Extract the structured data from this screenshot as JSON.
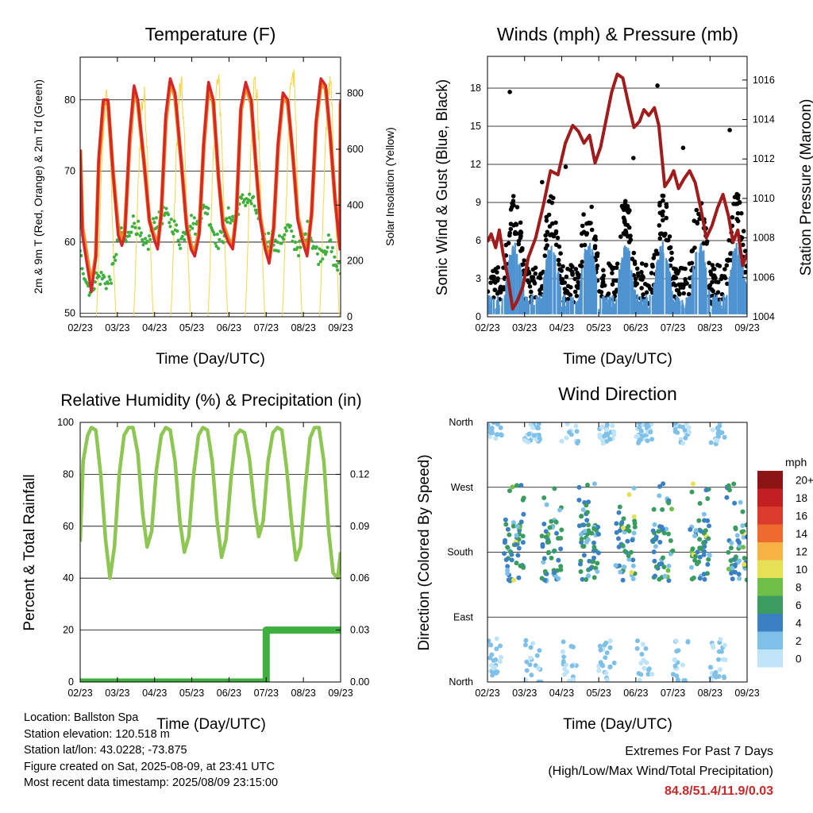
{
  "x_tick_labels": [
    "02/23",
    "03/23",
    "04/23",
    "05/23",
    "06/23",
    "07/23",
    "08/23",
    "09/23"
  ],
  "chart_data": [
    {
      "id": "temperature",
      "type": "line",
      "title": "Temperature (F)",
      "xlabel": "Time (Day/UTC)",
      "ylabel": "2m & 9m T (Red, Orange) & 2m Td (Green)",
      "ylabel_right": "Solar Insolation (Yellow)",
      "xlim": [
        0,
        7
      ],
      "ylim": [
        49.5,
        86
      ],
      "ylim_right": [
        0,
        930
      ],
      "yticks": [
        50,
        60,
        70,
        80
      ],
      "yticks_right": [
        0,
        200,
        400,
        600,
        800
      ],
      "series": [
        {
          "name": "2m T",
          "color": "#d62728",
          "x": [
            0.0,
            0.06,
            0.18,
            0.3,
            0.42,
            0.5,
            0.62,
            0.75,
            0.88,
            1.02,
            1.12,
            1.2,
            1.33,
            1.45,
            1.55,
            1.72,
            1.86,
            1.98,
            2.08,
            2.18,
            2.3,
            2.42,
            2.55,
            2.72,
            2.86,
            2.98,
            3.08,
            3.2,
            3.32,
            3.45,
            3.58,
            3.72,
            3.84,
            3.98,
            4.1,
            4.2,
            4.32,
            4.45,
            4.6,
            4.72,
            4.84,
            4.97,
            5.08,
            5.2,
            5.32,
            5.45,
            5.58,
            5.72,
            5.85,
            5.98,
            6.1,
            6.22,
            6.34,
            6.47,
            6.6,
            6.72,
            6.85,
            6.98,
            7.0
          ],
          "y": [
            73,
            61,
            57,
            53,
            58,
            72,
            80,
            80,
            70,
            61,
            59.5,
            61,
            75,
            82,
            80,
            71,
            63,
            60.5,
            59,
            64,
            78,
            83,
            81,
            71,
            62,
            59,
            58,
            61,
            74,
            82.5,
            80,
            69,
            62,
            60,
            59,
            64,
            79,
            82.5,
            80,
            71,
            63,
            59,
            57,
            62,
            74,
            81,
            80,
            72,
            63,
            60,
            58,
            64,
            77,
            83,
            82,
            75,
            66,
            59,
            80
          ]
        },
        {
          "name": "9m T",
          "color": "#f08a24",
          "x": [
            0.0,
            0.06,
            0.18,
            0.3,
            0.42,
            0.5,
            0.62,
            0.75,
            0.88,
            1.02,
            1.12,
            1.2,
            1.33,
            1.45,
            1.55,
            1.72,
            1.86,
            1.98,
            2.08,
            2.18,
            2.3,
            2.42,
            2.55,
            2.72,
            2.86,
            2.98,
            3.08,
            3.2,
            3.32,
            3.45,
            3.58,
            3.72,
            3.84,
            3.98,
            4.1,
            4.2,
            4.32,
            4.45,
            4.6,
            4.72,
            4.84,
            4.97,
            5.08,
            5.2,
            5.32,
            5.45,
            5.58,
            5.72,
            5.85,
            5.98,
            6.1,
            6.22,
            6.34,
            6.47,
            6.6,
            6.72,
            6.85,
            6.98,
            7.0
          ],
          "y": [
            73,
            62,
            58,
            54,
            58,
            71,
            79.5,
            79.5,
            70,
            62,
            60,
            61.5,
            74,
            81.5,
            79.5,
            71,
            63,
            61,
            59.5,
            64,
            77,
            82.5,
            80.5,
            71,
            62.5,
            59.5,
            58.5,
            61.5,
            73.5,
            82,
            79.5,
            69,
            62.5,
            60.5,
            59.5,
            64,
            78.5,
            82,
            79.5,
            71,
            63.5,
            59.5,
            57.5,
            62,
            73.5,
            80.5,
            79.5,
            72,
            63.5,
            60.5,
            58.5,
            64,
            76.5,
            82.5,
            81.5,
            75,
            66,
            59.5,
            79.5
          ]
        },
        {
          "name": "2m Td",
          "color": "#3fb03f",
          "x": [
            0.0,
            0.1,
            0.2,
            0.3,
            0.4,
            0.5,
            0.62,
            0.75,
            0.88,
            1.0,
            1.12,
            1.25,
            1.4,
            1.55,
            1.7,
            1.85,
            2.0,
            2.12,
            2.25,
            2.4,
            2.55,
            2.7,
            2.85,
            3.0,
            3.12,
            3.25,
            3.4,
            3.55,
            3.7,
            3.85,
            4.0,
            4.12,
            4.25,
            4.4,
            4.55,
            4.7,
            4.85,
            5.0,
            5.15,
            5.3,
            5.45,
            5.6,
            5.75,
            5.9,
            6.0,
            6.12,
            6.25,
            6.4,
            6.55,
            6.7,
            6.85,
            7.0
          ],
          "y": [
            58,
            56,
            54,
            53,
            55,
            55,
            55,
            54,
            56,
            60,
            61,
            60,
            63,
            62,
            59,
            60,
            63,
            63,
            64,
            63,
            62,
            60,
            62,
            63,
            62,
            64,
            65,
            62,
            60,
            61,
            64,
            63,
            65,
            66,
            66,
            65,
            62,
            60,
            61,
            59,
            61,
            62,
            60,
            59,
            60,
            62,
            60,
            58,
            59,
            60,
            57,
            56
          ]
        }
      ],
      "insolation": {
        "name": "Solar Insolation",
        "color": "#f5d547",
        "days": [
          0,
          1,
          2,
          3,
          4,
          5,
          6
        ],
        "peaks": [
          830,
          850,
          880,
          900,
          900,
          940,
          890
        ]
      }
    },
    {
      "id": "winds",
      "type": "line",
      "title": "Winds (mph) & Pressure (mb)",
      "xlabel": "Time (Day/UTC)",
      "ylabel": "Sonic Wind & Gust (Blue, Black)",
      "ylabel_right": "Station Pressure (Maroon)",
      "xlim": [
        0,
        7
      ],
      "ylim": [
        0,
        20.5
      ],
      "ylim_right": [
        1004,
        1017.2
      ],
      "yticks": [
        0,
        3,
        6,
        9,
        12,
        15,
        18
      ],
      "yticks_right": [
        1004,
        1006,
        1008,
        1010,
        1012,
        1014,
        1016
      ],
      "series": [
        {
          "name": "Station Pressure",
          "color": "#a01c1c",
          "x": [
            0.0,
            0.1,
            0.22,
            0.32,
            0.42,
            0.55,
            0.68,
            0.8,
            0.95,
            1.1,
            1.3,
            1.5,
            1.7,
            1.9,
            2.1,
            2.3,
            2.45,
            2.6,
            2.75,
            2.9,
            3.05,
            3.2,
            3.35,
            3.5,
            3.65,
            3.8,
            3.95,
            4.1,
            4.22,
            4.35,
            4.5,
            4.62,
            4.78,
            4.92,
            5.02,
            5.15,
            5.3,
            5.45,
            5.6,
            5.75,
            5.9,
            6.05,
            6.2,
            6.35,
            6.5,
            6.62,
            6.75,
            6.88,
            7.0
          ],
          "y": [
            1007.8,
            1008.2,
            1007.5,
            1008.4,
            1007.2,
            1006.0,
            1004.4,
            1004.8,
            1005.5,
            1007.0,
            1008.0,
            1009.6,
            1011.4,
            1011.2,
            1012.8,
            1013.7,
            1013.4,
            1012.8,
            1013.2,
            1011.8,
            1012.6,
            1014.0,
            1015.4,
            1016.3,
            1016.1,
            1014.8,
            1013.6,
            1013.9,
            1014.5,
            1014.2,
            1014.6,
            1013.7,
            1010.6,
            1011.0,
            1011.4,
            1010.5,
            1011.0,
            1011.4,
            1010.8,
            1009.5,
            1008.0,
            1008.6,
            1009.5,
            1010.2,
            1009.1,
            1007.8,
            1008.4,
            1006.6,
            1007.2
          ]
        }
      ],
      "wind": {
        "sustained_color": "#4f93d1",
        "gust_color": "#000000",
        "daily_peak_gust": [
          17.7,
          10.6,
          11.8,
          12.5,
          18.2,
          13.3,
          14.7
        ]
      }
    },
    {
      "id": "humidity",
      "type": "line",
      "title": "Relative Humidity (%) & Precipitation (in)",
      "xlabel": "Time (Day/UTC)",
      "ylabel": "Percent & Total Rainfall",
      "xlim": [
        0,
        7
      ],
      "ylim": [
        0,
        100
      ],
      "ylim_right": [
        0,
        0.15
      ],
      "yticks": [
        0,
        20,
        40,
        60,
        80,
        100
      ],
      "yticks_right_labels": [
        "0.00",
        "0.03",
        "0.06",
        "0.09",
        "0.12"
      ],
      "series": [
        {
          "name": "Relative Humidity",
          "color": "#8dc653",
          "x": [
            0.0,
            0.08,
            0.2,
            0.3,
            0.42,
            0.55,
            0.68,
            0.8,
            0.92,
            1.05,
            1.18,
            1.3,
            1.42,
            1.55,
            1.68,
            1.8,
            1.92,
            2.05,
            2.18,
            2.3,
            2.42,
            2.55,
            2.68,
            2.8,
            2.92,
            3.05,
            3.18,
            3.3,
            3.42,
            3.55,
            3.68,
            3.8,
            3.92,
            4.05,
            4.18,
            4.3,
            4.42,
            4.55,
            4.68,
            4.8,
            4.92,
            5.05,
            5.18,
            5.3,
            5.42,
            5.55,
            5.68,
            5.8,
            5.92,
            6.05,
            6.18,
            6.3,
            6.42,
            6.55,
            6.68,
            6.8,
            6.92,
            7.0
          ],
          "y": [
            54,
            85,
            95,
            98,
            97,
            80,
            55,
            40,
            52,
            80,
            95,
            98,
            98,
            88,
            65,
            52,
            58,
            82,
            95,
            98,
            97,
            85,
            62,
            50,
            56,
            80,
            95,
            98,
            97,
            85,
            62,
            48,
            55,
            78,
            95,
            97,
            96,
            86,
            68,
            56,
            62,
            85,
            96,
            98,
            97,
            82,
            62,
            47,
            52,
            75,
            94,
            98,
            98,
            85,
            58,
            42,
            40,
            50
          ]
        },
        {
          "name": "Total Precipitation",
          "color": "#3fb03f",
          "x": [
            0.0,
            5.0,
            5.0,
            7.0
          ],
          "y": [
            0.0,
            0.0,
            0.03,
            0.03
          ]
        }
      ]
    },
    {
      "id": "direction",
      "type": "scatter",
      "title": "Wind Direction",
      "xlabel": "Time (Day/UTC)",
      "ylabel": "Direction (Colored By Speed)",
      "xlim": [
        0,
        7
      ],
      "yticks_labels": [
        "North",
        "East",
        "South",
        "West",
        "North"
      ],
      "colorbar": {
        "title": "mph",
        "labels": [
          "0",
          "2",
          "4",
          "6",
          "8",
          "10",
          "12",
          "14",
          "16",
          "18",
          "20+"
        ],
        "colors": [
          "#bfe3f7",
          "#7fc0e8",
          "#3a80c3",
          "#3a9d5f",
          "#6fbf47",
          "#e6e057",
          "#f6b243",
          "#ee6a2e",
          "#da3b2a",
          "#c11f22",
          "#8c1414"
        ]
      }
    }
  ],
  "footer": {
    "location": "Location: Ballston Spa",
    "elevation": "Station elevation: 120.518 m",
    "latlon": "Station lat/lon: 43.0228; -73.875",
    "created": "Figure created on Sat, 2025-08-09, at 23:41 UTC",
    "recent": "Most recent data timestamp: 2025/08/09 23:15:00",
    "extremes_title": "Extremes For Past 7 Days",
    "extremes_subtitle": "(High/Low/Max Wind/Total Precipitation)",
    "extremes_values": "84.8/51.4/11.9/0.03"
  }
}
